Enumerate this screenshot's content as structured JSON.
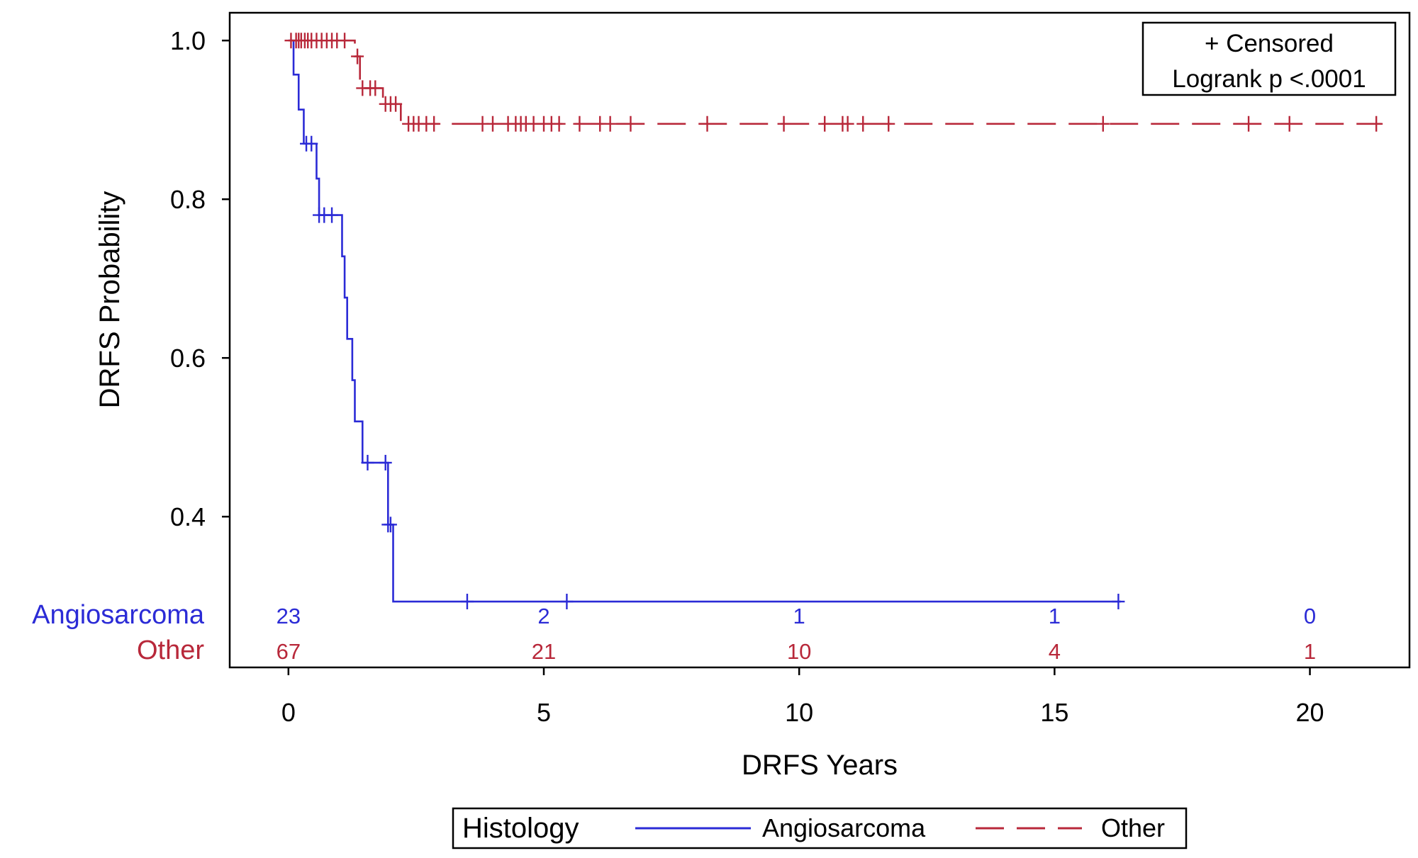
{
  "chart_data": {
    "type": "line",
    "subtype": "kaplan-meier",
    "title": "",
    "xlabel": "DRFS Years",
    "ylabel": "DRFS Probability",
    "xlim": [
      -1.15,
      21.95
    ],
    "ylim": [
      0.21,
      1.035
    ],
    "x_ticks": [
      0,
      5,
      10,
      15,
      20
    ],
    "x_tick_labels": [
      "0",
      "5",
      "10",
      "15",
      "20"
    ],
    "y_ticks": [
      0.4,
      0.6,
      0.8,
      1.0
    ],
    "y_tick_labels": [
      "0.4",
      "0.6",
      "0.8",
      "1.0"
    ],
    "grid": false,
    "inset": {
      "lines": [
        "+ Censored",
        "Logrank p <.0001"
      ],
      "placement": "top-right"
    },
    "legend": {
      "title": "Histology",
      "placement": "bottom",
      "entries": [
        "Angiosarcoma",
        "Other"
      ]
    },
    "risk_table": {
      "times": [
        0,
        5,
        10,
        15,
        20
      ],
      "rows": [
        {
          "name": "Angiosarcoma",
          "counts": [
            "23",
            "2",
            "1",
            "1",
            "0"
          ]
        },
        {
          "name": "Other",
          "counts": [
            "67",
            "21",
            "10",
            "4",
            "1"
          ]
        }
      ]
    },
    "series": [
      {
        "name": "Angiosarcoma",
        "color": "#2b2bd6",
        "dash": "solid",
        "steps": [
          [
            0,
            1.0
          ],
          [
            0.1,
            0.957
          ],
          [
            0.2,
            0.913
          ],
          [
            0.3,
            0.87
          ],
          [
            0.55,
            0.826
          ],
          [
            0.6,
            0.78
          ],
          [
            1.05,
            0.728
          ],
          [
            1.1,
            0.676
          ],
          [
            1.15,
            0.624
          ],
          [
            1.25,
            0.572
          ],
          [
            1.3,
            0.52
          ],
          [
            1.45,
            0.468
          ],
          [
            1.95,
            0.39
          ],
          [
            2.05,
            0.293
          ]
        ],
        "end": 16.3,
        "censored": [
          [
            0.35,
            0.87
          ],
          [
            0.45,
            0.87
          ],
          [
            0.6,
            0.78
          ],
          [
            0.7,
            0.78
          ],
          [
            0.85,
            0.78
          ],
          [
            1.55,
            0.468
          ],
          [
            1.9,
            0.468
          ],
          [
            1.95,
            0.39
          ],
          [
            2.0,
            0.39
          ],
          [
            3.5,
            0.293
          ],
          [
            5.45,
            0.293
          ],
          [
            16.25,
            0.293
          ]
        ]
      },
      {
        "name": "Other",
        "color": "#b8283a",
        "dash": "dashed",
        "steps": [
          [
            0,
            1.0
          ],
          [
            1.3,
            0.98
          ],
          [
            1.4,
            0.94
          ],
          [
            1.85,
            0.92
          ],
          [
            2.2,
            0.895
          ]
        ],
        "end": 21.4,
        "censored": [
          [
            0.05,
            1.0
          ],
          [
            0.15,
            1.0
          ],
          [
            0.2,
            1.0
          ],
          [
            0.25,
            1.0
          ],
          [
            0.32,
            1.0
          ],
          [
            0.38,
            1.0
          ],
          [
            0.45,
            1.0
          ],
          [
            0.55,
            1.0
          ],
          [
            0.65,
            1.0
          ],
          [
            0.75,
            1.0
          ],
          [
            0.85,
            1.0
          ],
          [
            0.95,
            1.0
          ],
          [
            1.1,
            1.0
          ],
          [
            1.35,
            0.98
          ],
          [
            1.45,
            0.94
          ],
          [
            1.6,
            0.94
          ],
          [
            1.7,
            0.94
          ],
          [
            1.9,
            0.92
          ],
          [
            2.0,
            0.92
          ],
          [
            2.1,
            0.92
          ],
          [
            2.35,
            0.895
          ],
          [
            2.45,
            0.895
          ],
          [
            2.55,
            0.895
          ],
          [
            2.7,
            0.895
          ],
          [
            2.85,
            0.895
          ],
          [
            3.8,
            0.895
          ],
          [
            4.0,
            0.895
          ],
          [
            4.3,
            0.895
          ],
          [
            4.45,
            0.895
          ],
          [
            4.55,
            0.895
          ],
          [
            4.65,
            0.895
          ],
          [
            4.8,
            0.895
          ],
          [
            5.0,
            0.895
          ],
          [
            5.15,
            0.895
          ],
          [
            5.3,
            0.895
          ],
          [
            5.7,
            0.895
          ],
          [
            6.1,
            0.895
          ],
          [
            6.3,
            0.895
          ],
          [
            6.7,
            0.895
          ],
          [
            8.2,
            0.895
          ],
          [
            9.7,
            0.895
          ],
          [
            10.5,
            0.895
          ],
          [
            10.85,
            0.895
          ],
          [
            10.95,
            0.895
          ],
          [
            11.25,
            0.895
          ],
          [
            11.75,
            0.895
          ],
          [
            15.95,
            0.895
          ],
          [
            18.8,
            0.895
          ],
          [
            19.6,
            0.895
          ],
          [
            21.3,
            0.895
          ]
        ]
      }
    ]
  }
}
